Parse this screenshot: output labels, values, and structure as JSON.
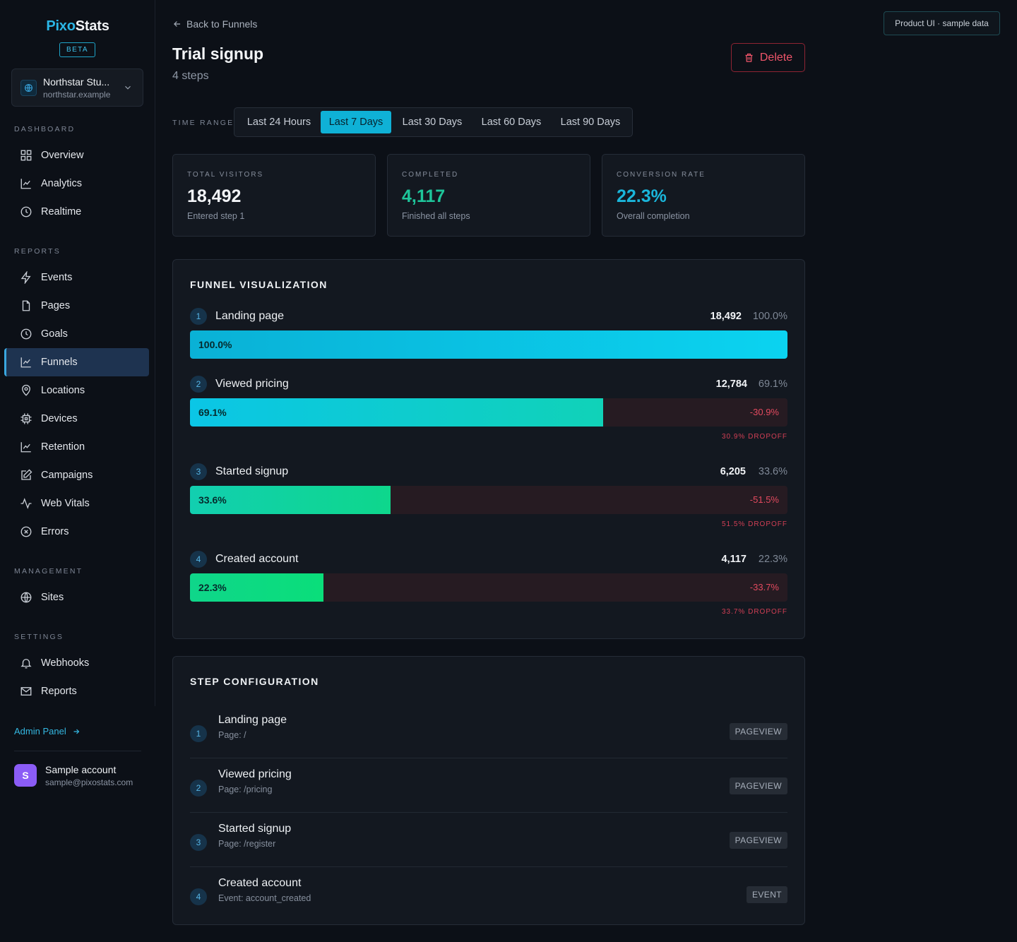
{
  "brand": {
    "part1": "Pixo",
    "part2": "Stats",
    "badge": "BETA"
  },
  "site": {
    "name": "Northstar Stu...",
    "domain": "northstar.example"
  },
  "sections": {
    "dashboard": "DASHBOARD",
    "reports": "REPORTS",
    "management": "MANAGEMENT",
    "settings": "SETTINGS"
  },
  "nav": {
    "overview": "Overview",
    "analytics": "Analytics",
    "realtime": "Realtime",
    "events": "Events",
    "pages": "Pages",
    "goals": "Goals",
    "funnels": "Funnels",
    "locations": "Locations",
    "devices": "Devices",
    "retention": "Retention",
    "campaigns": "Campaigns",
    "web_vitals": "Web Vitals",
    "errors": "Errors",
    "sites": "Sites",
    "webhooks": "Webhooks",
    "reports": "Reports"
  },
  "admin_link": "Admin Panel",
  "account": {
    "initial": "S",
    "name": "Sample account",
    "email": "sample@pixostats.com"
  },
  "header": {
    "back": "Back to Funnels",
    "title": "Trial signup",
    "subtitle": "4 steps",
    "delete": "Delete",
    "sample_badge": "Product UI · sample data"
  },
  "time_range": {
    "label": "TIME RANGE",
    "options": [
      "Last 24 Hours",
      "Last 7 Days",
      "Last 30 Days",
      "Last 60 Days",
      "Last 90 Days"
    ],
    "selected": "Last 7 Days"
  },
  "stats": [
    {
      "label": "TOTAL VISITORS",
      "value": "18,492",
      "caption": "Entered step 1"
    },
    {
      "label": "COMPLETED",
      "value": "4,117",
      "caption": "Finished all steps"
    },
    {
      "label": "CONVERSION RATE",
      "value": "22.3%",
      "caption": "Overall completion"
    }
  ],
  "funnel": {
    "title": "FUNNEL VISUALIZATION",
    "steps": [
      {
        "num": "1",
        "name": "Landing page",
        "count": "18,492",
        "pct": "100.0%",
        "fill": 1.0,
        "bar_label": "100.0%",
        "drop": "",
        "dropoff": ""
      },
      {
        "num": "2",
        "name": "Viewed pricing",
        "count": "12,784",
        "pct": "69.1%",
        "fill": 0.691,
        "bar_label": "69.1%",
        "drop": "-30.9%",
        "dropoff": "30.9% DROPOFF"
      },
      {
        "num": "3",
        "name": "Started signup",
        "count": "6,205",
        "pct": "33.6%",
        "fill": 0.336,
        "bar_label": "33.6%",
        "drop": "-51.5%",
        "dropoff": "51.5% DROPOFF"
      },
      {
        "num": "4",
        "name": "Created account",
        "count": "4,117",
        "pct": "22.3%",
        "fill": 0.223,
        "bar_label": "22.3%",
        "drop": "-33.7%",
        "dropoff": "33.7% DROPOFF"
      }
    ]
  },
  "config": {
    "title": "STEP CONFIGURATION",
    "steps": [
      {
        "num": "1",
        "name": "Landing page",
        "detail": "Page: /",
        "type": "PAGEVIEW"
      },
      {
        "num": "2",
        "name": "Viewed pricing",
        "detail": "Page: /pricing",
        "type": "PAGEVIEW"
      },
      {
        "num": "3",
        "name": "Started signup",
        "detail": "Page: /register",
        "type": "PAGEVIEW"
      },
      {
        "num": "4",
        "name": "Created account",
        "detail": "Event: account_created",
        "type": "EVENT"
      }
    ]
  },
  "colors": {
    "accent": "#0fb1d6",
    "bar_gradients": [
      [
        "#0ab1d6",
        "#0bd3f0"
      ],
      [
        "#0bc6e6",
        "#10d2b8"
      ],
      [
        "#12cfb0",
        "#0ed78c"
      ],
      [
        "#0fd68a",
        "#0ade7a"
      ]
    ]
  }
}
